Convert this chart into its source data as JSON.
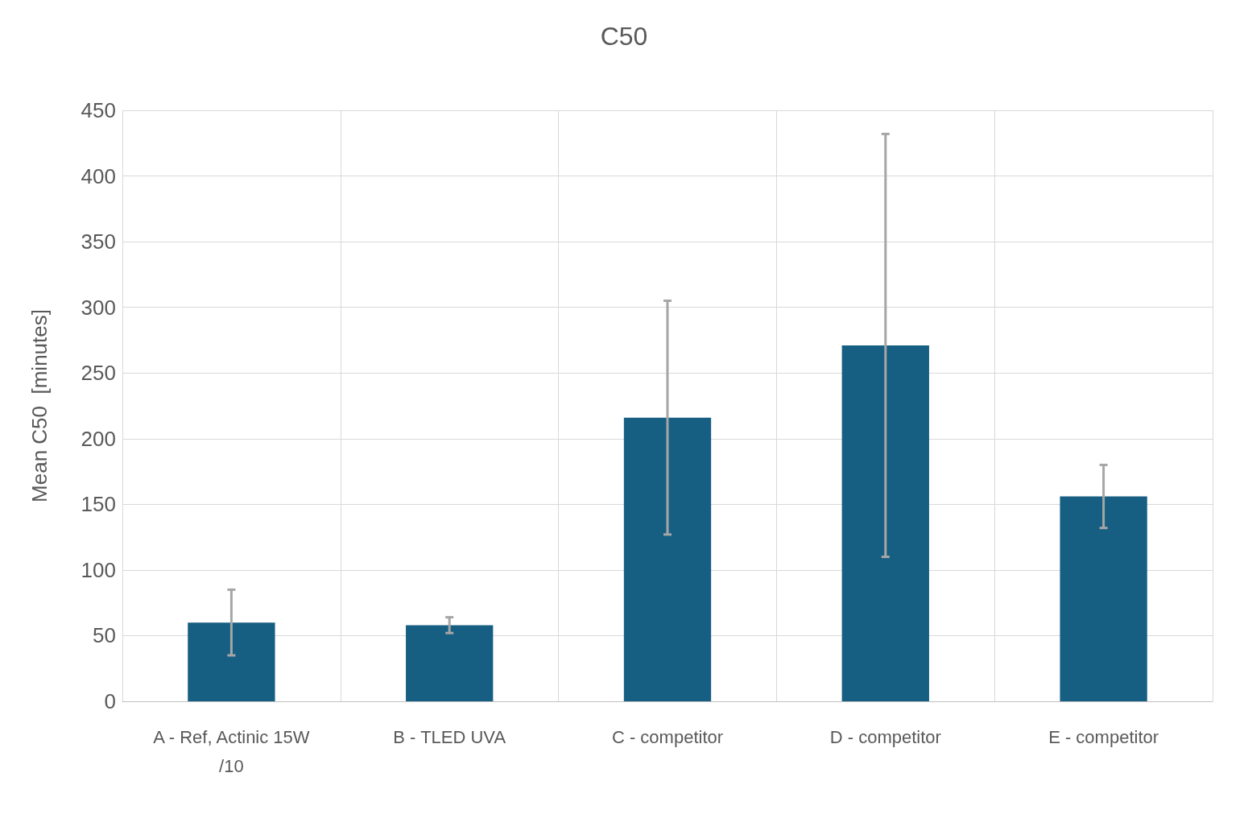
{
  "chart_data": {
    "type": "bar",
    "title": "C50",
    "ylabel": "Mean C50  [minutes]",
    "categories": [
      "A - Ref, Actinic 15W/10",
      "B - TLED UVA",
      "C - competitor",
      "D - competitor",
      "E - competitor"
    ],
    "values": [
      60,
      58,
      216,
      271,
      156
    ],
    "errors": [
      25,
      6,
      89,
      161,
      24
    ],
    "color": "#175f82",
    "ylim": [
      0,
      450
    ],
    "yticks": [
      0,
      50,
      100,
      150,
      200,
      250,
      300,
      350,
      400,
      450
    ],
    "grid": true
  }
}
